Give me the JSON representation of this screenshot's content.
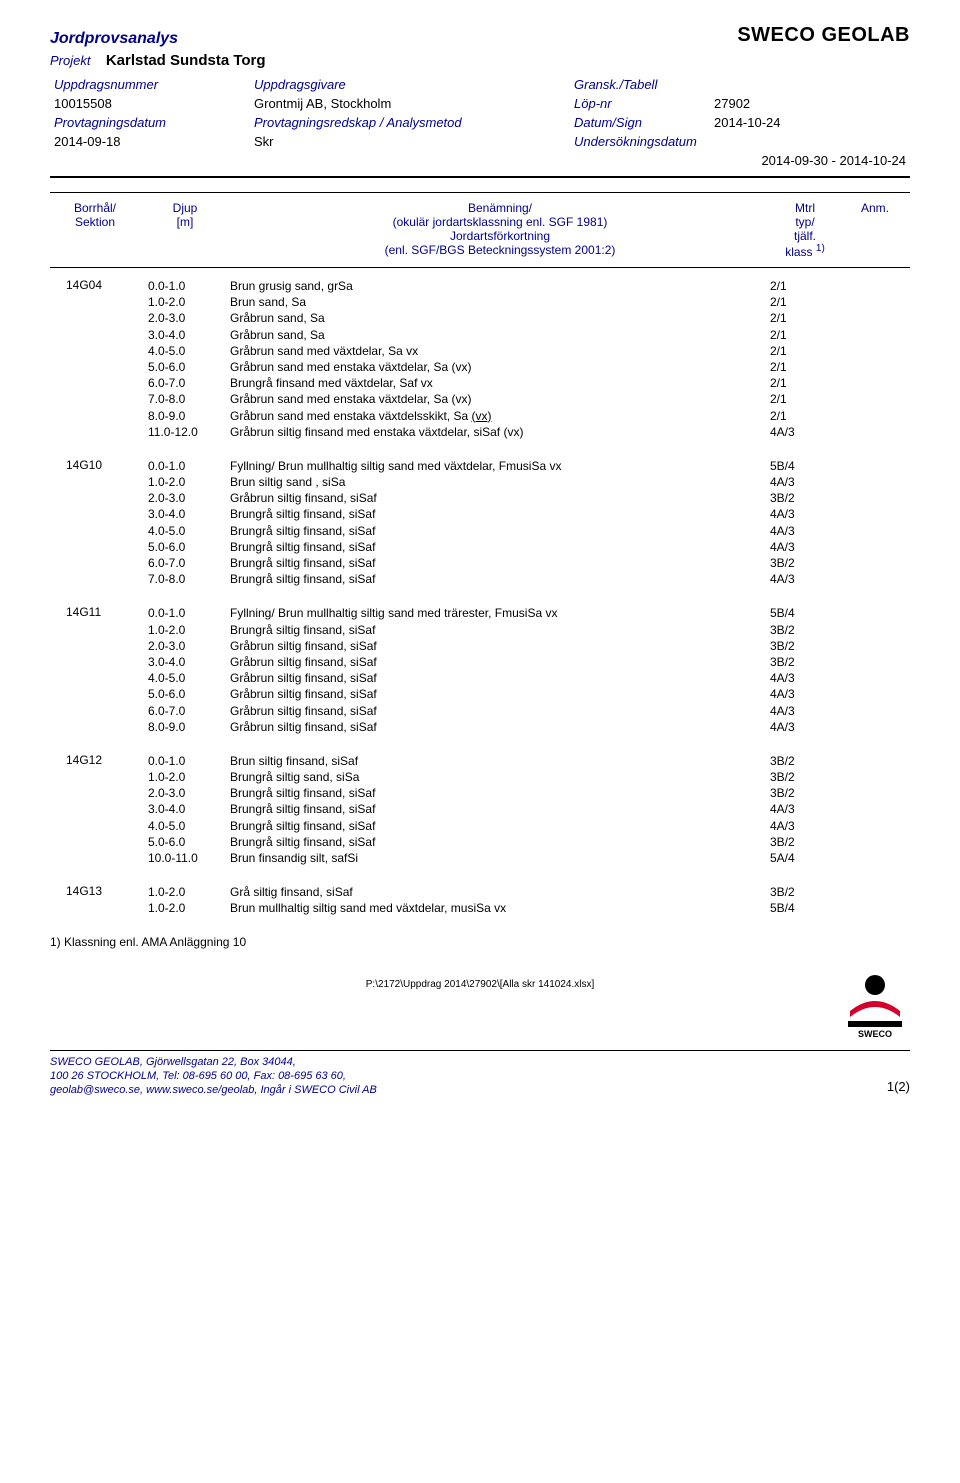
{
  "brand": "SWECO GEOLAB",
  "title": "Jordprovsanalys",
  "project_label": "Projekt",
  "project_name": "Karlstad Sundsta Torg",
  "header": {
    "uppdragsnummer_label": "Uppdragsnummer",
    "uppdragsnummer": "10015508",
    "uppdragsgivare_label": "Uppdragsgivare",
    "uppdragsgivare": "Grontmij AB, Stockholm",
    "gransk_label": "Gransk./Tabell",
    "lopnr_label": "Löp-nr",
    "lopnr": "27902",
    "provdatum_label": "Provtagningsdatum",
    "provdatum": "2014-09-18",
    "redskap_label": "Provtagningsredskap / Analysmetod",
    "redskap": "Skr",
    "datumsign_label": "Datum/Sign",
    "datumsign": "2014-10-24",
    "undersok_label": "Undersökningsdatum",
    "undersok": "2014-09-30    -    2014-10-24"
  },
  "col_headers": {
    "borrhal": "Borrhål/\nSektion",
    "djup": "Djup\n[m]",
    "benamning": "Benämning/\n(okulär jordartsklassning enl. SGF 1981)\nJordartsförkortning\n(enl. SGF/BGS Beteckningssystem 2001:2)",
    "mtrl": "Mtrl\ntyp/\ntjälf.\nklass ",
    "mtrl_sup": "1)",
    "anm": "Anm."
  },
  "groups": [
    {
      "borr": "14G04",
      "rows": [
        {
          "djup": "0.0-1.0",
          "desc": "Brun grusig sand, grSa",
          "mtrl": "2/1"
        },
        {
          "djup": "1.0-2.0",
          "desc": "Brun sand, Sa",
          "mtrl": "2/1"
        },
        {
          "djup": "2.0-3.0",
          "desc": "Gråbrun sand, Sa",
          "mtrl": "2/1"
        },
        {
          "djup": "3.0-4.0",
          "desc": "Gråbrun sand, Sa",
          "mtrl": "2/1"
        },
        {
          "djup": "4.0-5.0",
          "desc": "Gråbrun sand med växtdelar, Sa vx",
          "mtrl": "2/1"
        },
        {
          "djup": "5.0-6.0",
          "desc": "Gråbrun sand med enstaka växtdelar, Sa (vx)",
          "mtrl": "2/1"
        },
        {
          "djup": "6.0-7.0",
          "desc": "Brungrå finsand med växtdelar, Saf vx",
          "mtrl": "2/1"
        },
        {
          "djup": "7.0-8.0",
          "desc": "Gråbrun sand med enstaka växtdelar, Sa (vx)",
          "mtrl": "2/1"
        },
        {
          "djup": "8.0-9.0",
          "desc": "Gråbrun sand med enstaka växtdelsskikt, Sa (vx)",
          "mtrl": "2/1",
          "underline_vx": true
        },
        {
          "djup": "11.0-12.0",
          "desc": "Gråbrun siltig finsand med enstaka växtdelar, siSaf (vx)",
          "mtrl": "4A/3"
        }
      ]
    },
    {
      "borr": "14G10",
      "rows": [
        {
          "djup": "0.0-1.0",
          "desc": "Fyllning/ Brun mullhaltig siltig sand med växtdelar, FmusiSa vx",
          "mtrl": "5B/4"
        },
        {
          "djup": "1.0-2.0",
          "desc": "Brun siltig sand , siSa",
          "mtrl": "4A/3"
        },
        {
          "djup": "2.0-3.0",
          "desc": "Gråbrun siltig finsand, siSaf",
          "mtrl": "3B/2"
        },
        {
          "djup": "3.0-4.0",
          "desc": "Brungrå siltig finsand, siSaf",
          "mtrl": "4A/3"
        },
        {
          "djup": "4.0-5.0",
          "desc": "Brungrå siltig finsand, siSaf",
          "mtrl": "4A/3"
        },
        {
          "djup": "5.0-6.0",
          "desc": "Brungrå siltig finsand, siSaf",
          "mtrl": "4A/3"
        },
        {
          "djup": "6.0-7.0",
          "desc": "Brungrå siltig finsand, siSaf",
          "mtrl": "3B/2"
        },
        {
          "djup": "7.0-8.0",
          "desc": "Brungrå siltig finsand, siSaf",
          "mtrl": "4A/3"
        }
      ]
    },
    {
      "borr": "14G11",
      "rows": [
        {
          "djup": "0.0-1.0",
          "desc": "Fyllning/ Brun mullhaltig siltig sand med trärester, FmusiSa vx",
          "mtrl": "5B/4"
        },
        {
          "djup": "1.0-2.0",
          "desc": "Brungrå siltig finsand, siSaf",
          "mtrl": "3B/2"
        },
        {
          "djup": "2.0-3.0",
          "desc": "Gråbrun siltig finsand, siSaf",
          "mtrl": "3B/2"
        },
        {
          "djup": "3.0-4.0",
          "desc": "Gråbrun siltig finsand, siSaf",
          "mtrl": "3B/2"
        },
        {
          "djup": "4.0-5.0",
          "desc": "Gråbrun siltig finsand, siSaf",
          "mtrl": "4A/3"
        },
        {
          "djup": "5.0-6.0",
          "desc": "Gråbrun siltig finsand, siSaf",
          "mtrl": "4A/3"
        },
        {
          "djup": "6.0-7.0",
          "desc": "Gråbrun siltig finsand, siSaf",
          "mtrl": "4A/3"
        },
        {
          "djup": "8.0-9.0",
          "desc": "Gråbrun siltig finsand, siSaf",
          "mtrl": "4A/3"
        }
      ]
    },
    {
      "borr": "14G12",
      "rows": [
        {
          "djup": "0.0-1.0",
          "desc": "Brun siltig finsand, siSaf",
          "mtrl": "3B/2"
        },
        {
          "djup": "1.0-2.0",
          "desc": "Brungrå siltig sand, siSa",
          "mtrl": "3B/2"
        },
        {
          "djup": "2.0-3.0",
          "desc": "Brungrå siltig finsand, siSaf",
          "mtrl": "3B/2"
        },
        {
          "djup": "3.0-4.0",
          "desc": "Brungrå siltig finsand, siSaf",
          "mtrl": "4A/3"
        },
        {
          "djup": "4.0-5.0",
          "desc": "Brungrå siltig finsand, siSaf",
          "mtrl": "4A/3"
        },
        {
          "djup": "5.0-6.0",
          "desc": "Brungrå siltig finsand, siSaf",
          "mtrl": "3B/2"
        },
        {
          "djup": "10.0-11.0",
          "desc": "Brun finsandig silt, safSi",
          "mtrl": "5A/4"
        }
      ]
    },
    {
      "borr": "14G13",
      "rows": [
        {
          "djup": "1.0-2.0",
          "desc": "Grå siltig finsand, siSaf",
          "mtrl": "3B/2"
        },
        {
          "djup": "1.0-2.0",
          "desc": "Brun mullhaltig siltig sand med växtdelar, musiSa vx",
          "mtrl": "5B/4"
        }
      ]
    }
  ],
  "footnote": "1) Klassning enl. AMA Anläggning 10",
  "filepath": "P:\\2172\\Uppdrag 2014\\27902\\[Alla skr 141024.xlsx]",
  "footer": {
    "line1": "SWECO GEOLAB, Gjörwellsgatan 22, Box 34044,",
    "line2": "100 26 STOCKHOLM, Tel: 08-695 60 00, Fax: 08-695 63 60,",
    "line3": "geolab@sweco.se, www.sweco.se/geolab, Ingår i SWECO Civil AB",
    "page": "1(2)"
  },
  "logo_colors": {
    "black": "#000000",
    "red": "#d4002a"
  }
}
